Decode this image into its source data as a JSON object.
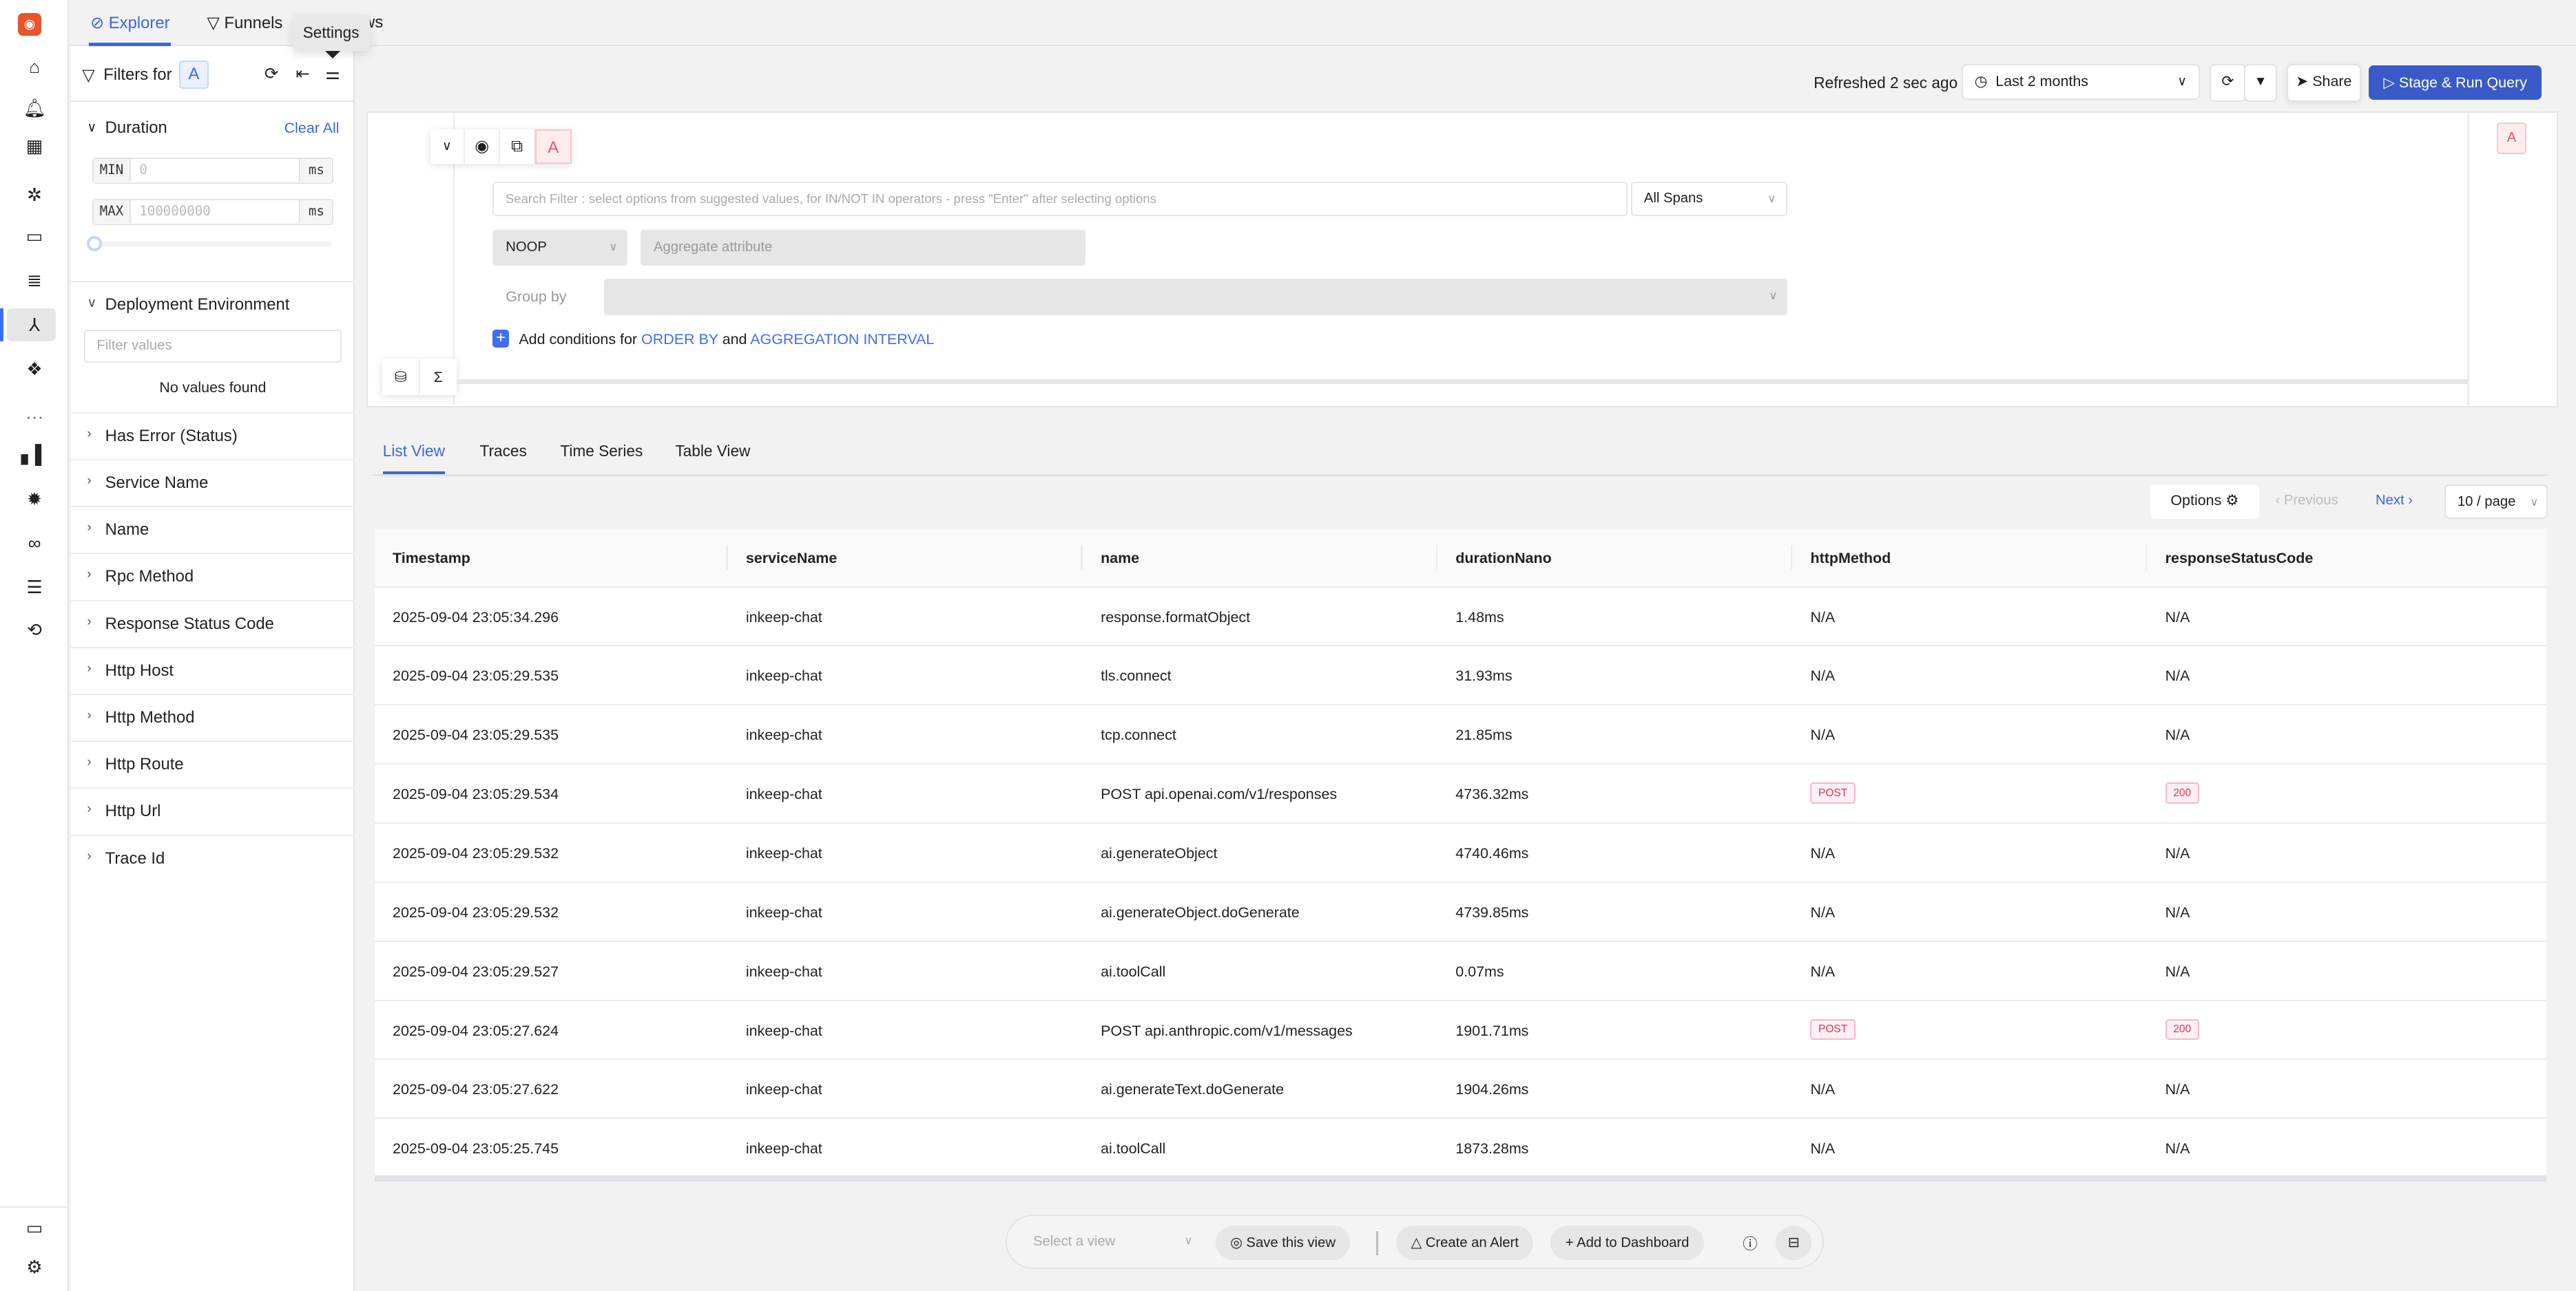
{
  "rail": {
    "icons": [
      "signoz-logo-icon",
      "home-icon",
      "alert-bell-icon",
      "dashboard-grid-icon",
      "sparkle-cursor-icon",
      "storage-icon",
      "logs-scroll-icon",
      "traces-icon",
      "services-cubes-icon",
      "more-icon",
      "metrics-bar-icon",
      "bug-icon",
      "binoculars-icon",
      "pipelines-lines-icon",
      "workflow-icon",
      "chat-icon",
      "settings-gear-icon"
    ]
  },
  "topnav": {
    "tabs": [
      {
        "label": "Explorer",
        "active": true
      },
      {
        "label": "Funnels"
      },
      {
        "label": "ws"
      }
    ],
    "tooltip": "Settings"
  },
  "filters": {
    "title": "Filters for",
    "query_badge": "A",
    "duration": {
      "label": "Duration",
      "clear_all": "Clear All",
      "min_label": "MIN",
      "min_placeholder": "0",
      "max_label": "MAX",
      "max_placeholder": "100000000",
      "unit": "ms",
      "slider_value": 0
    },
    "deployment": {
      "label": "Deployment Environment",
      "search_placeholder": "Filter values",
      "empty": "No values found"
    },
    "sections": [
      "Has Error (Status)",
      "Service Name",
      "Name",
      "Rpc Method",
      "Response Status Code",
      "Http Host",
      "Http Method",
      "Http Route",
      "Http Url",
      "Trace Id"
    ]
  },
  "toolbar": {
    "refreshed": "Refreshed 2 sec ago",
    "time_range": "Last 2 months",
    "share": "Share",
    "stage_run": "Stage & Run Query",
    "accent": "#3a5bc7"
  },
  "query": {
    "badge": "A",
    "search_placeholder": "Search Filter : select options from suggested values, for IN/NOT IN operators - press \"Enter\" after selecting options",
    "span_scope": "All Spans",
    "aggregate_op": "NOOP",
    "aggregate_placeholder": "Aggregate attribute",
    "group_by": "Group by",
    "add_conditions": "Add conditions for",
    "order_by": "ORDER BY",
    "and": "and",
    "agg_interval": "AGGREGATION INTERVAL",
    "side_badge": "A"
  },
  "view_tabs": [
    {
      "label": "List View",
      "active": true
    },
    {
      "label": "Traces"
    },
    {
      "label": "Time Series"
    },
    {
      "label": "Table View"
    }
  ],
  "pagination": {
    "options": "Options",
    "previous": "Previous",
    "next": "Next",
    "page_size": "10 / page"
  },
  "table": {
    "columns": [
      "Timestamp",
      "serviceName",
      "name",
      "durationNano",
      "httpMethod",
      "responseStatusCode"
    ],
    "rows": [
      [
        "2025-09-04 23:05:34.296",
        "inkeep-chat",
        "response.formatObject",
        "1.48ms",
        "N/A",
        "N/A"
      ],
      [
        "2025-09-04 23:05:29.535",
        "inkeep-chat",
        "tls.connect",
        "31.93ms",
        "N/A",
        "N/A"
      ],
      [
        "2025-09-04 23:05:29.535",
        "inkeep-chat",
        "tcp.connect",
        "21.85ms",
        "N/A",
        "N/A"
      ],
      [
        "2025-09-04 23:05:29.534",
        "inkeep-chat",
        "POST api.openai.com/v1/responses",
        "4736.32ms",
        "POST",
        "200"
      ],
      [
        "2025-09-04 23:05:29.532",
        "inkeep-chat",
        "ai.generateObject",
        "4740.46ms",
        "N/A",
        "N/A"
      ],
      [
        "2025-09-04 23:05:29.532",
        "inkeep-chat",
        "ai.generateObject.doGenerate",
        "4739.85ms",
        "N/A",
        "N/A"
      ],
      [
        "2025-09-04 23:05:29.527",
        "inkeep-chat",
        "ai.toolCall",
        "0.07ms",
        "N/A",
        "N/A"
      ],
      [
        "2025-09-04 23:05:27.624",
        "inkeep-chat",
        "POST api.anthropic.com/v1/messages",
        "1901.71ms",
        "POST",
        "200"
      ],
      [
        "2025-09-04 23:05:27.622",
        "inkeep-chat",
        "ai.generateText.doGenerate",
        "1904.26ms",
        "N/A",
        "N/A"
      ],
      [
        "2025-09-04 23:05:25.745",
        "inkeep-chat",
        "ai.toolCall",
        "1873.28ms",
        "N/A",
        "N/A"
      ]
    ]
  },
  "bottom_bar": {
    "select_view": "Select a view",
    "save_view": "Save this view",
    "create_alert": "Create an Alert",
    "add_dashboard": "Add to Dashboard"
  }
}
